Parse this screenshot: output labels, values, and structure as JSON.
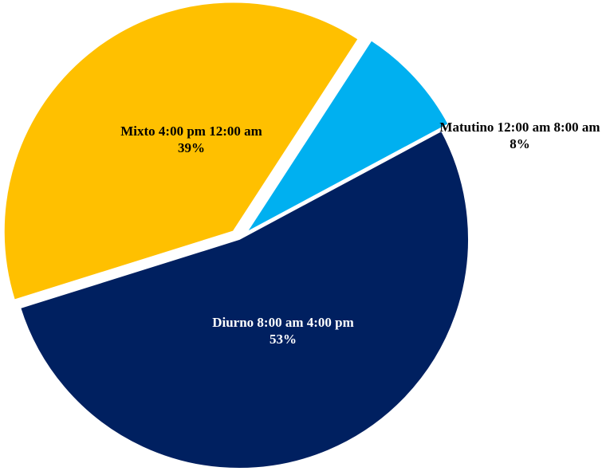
{
  "chart_data": {
    "type": "pie",
    "categories": [
      "Matutino 12:00 am 8:00 am",
      "Diurno 8:00 am 4:00 pm",
      "Mixto 4:00 pm 12:00 am"
    ],
    "values": [
      8,
      53,
      39
    ],
    "value_labels": [
      "8%",
      "53%",
      "39%"
    ],
    "colors": [
      "#00b0f0",
      "#002060",
      "#ffc000"
    ]
  }
}
